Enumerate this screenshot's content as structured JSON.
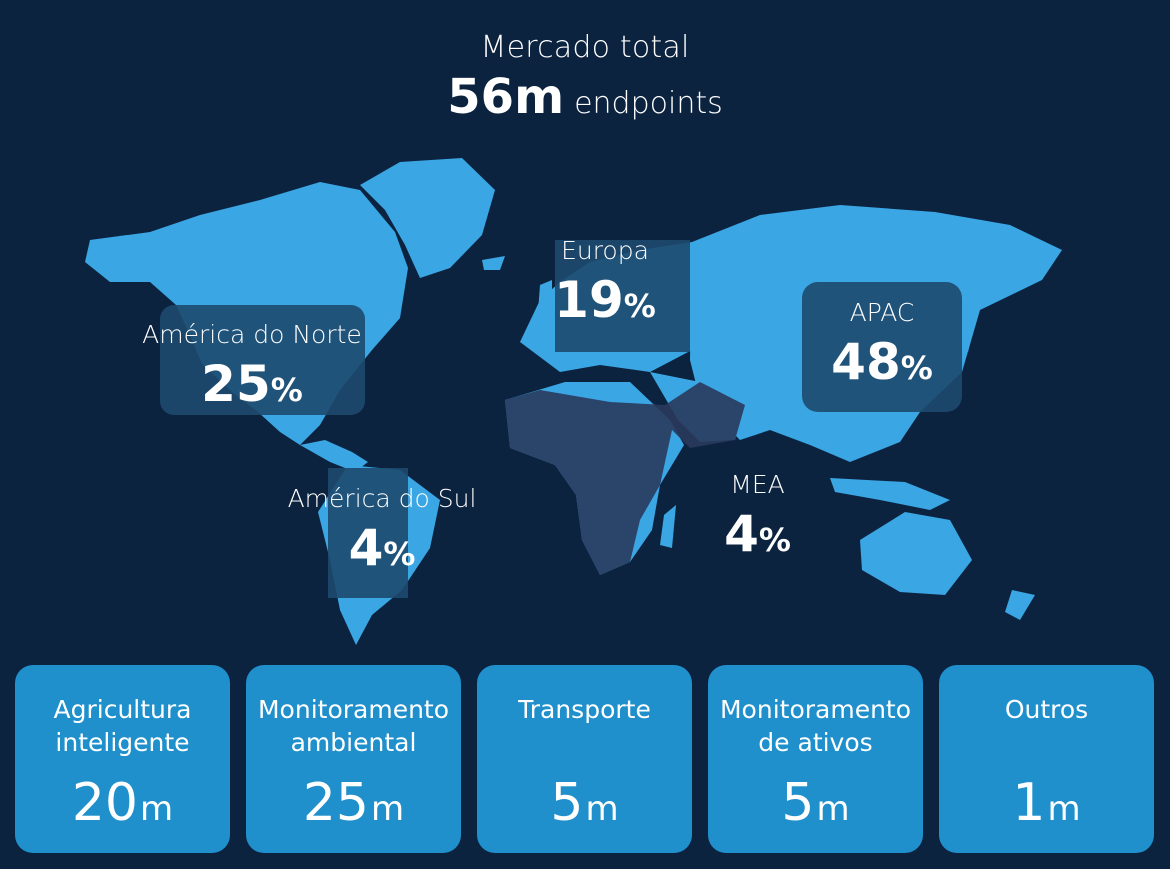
{
  "header": {
    "title": "Mercado total",
    "total_value": "56m",
    "total_unit": "endpoints"
  },
  "colors": {
    "background": "#0c2340",
    "land": "#3aa6e4",
    "highlight_box": "#1e4a6e",
    "dark_region": "#2a3a5c",
    "card": "#1f90cc"
  },
  "regions": [
    {
      "id": "america-do-norte",
      "label": "América do Norte",
      "value": "25",
      "unit": "%"
    },
    {
      "id": "europa",
      "label": "Europa",
      "value": "19",
      "unit": "%"
    },
    {
      "id": "apac",
      "label": "APAC",
      "value": "48",
      "unit": "%"
    },
    {
      "id": "america-do-sul",
      "label": "América do Sul",
      "value": "4",
      "unit": "%"
    },
    {
      "id": "mea",
      "label": "MEA",
      "value": "4",
      "unit": "%"
    }
  ],
  "cards": [
    {
      "label": "Agricultura\ninteligente",
      "value": "20",
      "unit": "m"
    },
    {
      "label": "Monitoramento\nambiental",
      "value": "25",
      "unit": "m"
    },
    {
      "label": "Transporte",
      "value": "5",
      "unit": "m"
    },
    {
      "label": "Monitoramento\nde ativos",
      "value": "5",
      "unit": "m"
    },
    {
      "label": "Outros",
      "value": "1",
      "unit": "m"
    }
  ]
}
